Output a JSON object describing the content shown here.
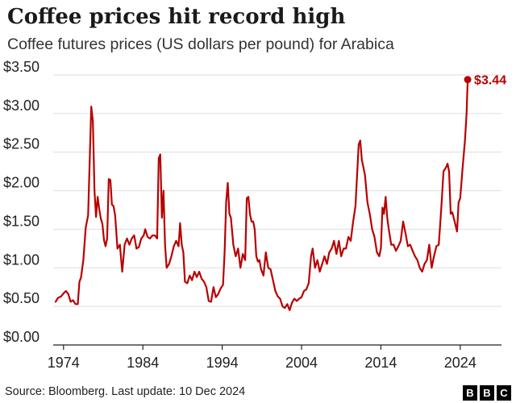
{
  "header": {
    "title": "Coffee prices hit record high",
    "subtitle": "Coffee futures prices (US dollars per pound) for Arabica"
  },
  "footer": {
    "source": "Source: Bloomberg. Last update: 10 Dec 2024",
    "logo_letters": [
      "B",
      "B",
      "C"
    ]
  },
  "colors": {
    "line": "#b80000",
    "grid": "#dddddd",
    "axis": "#222222",
    "text": "#222222"
  },
  "chart_data": {
    "type": "line",
    "title": "Coffee prices hit record high",
    "subtitle": "Coffee futures prices (US dollars per pound) for Arabica",
    "xlabel": "",
    "ylabel": "",
    "xlim": [
      1972.7,
      2025.95
    ],
    "ylim": [
      0,
      3.5
    ],
    "x_ticks": [
      1974,
      1984,
      1994,
      2004,
      2014,
      2024
    ],
    "y_ticks": [
      {
        "value": 0,
        "label": "$0.00"
      },
      {
        "value": 0.5,
        "label": "$0.50"
      },
      {
        "value": 1.0,
        "label": "$1.00"
      },
      {
        "value": 1.5,
        "label": "$1.50"
      },
      {
        "value": 2.0,
        "label": "$2.00"
      },
      {
        "value": 2.5,
        "label": "$2.50"
      },
      {
        "value": 3.0,
        "label": "$3.00"
      },
      {
        "value": 3.5,
        "label": "$3.50"
      }
    ],
    "grid": "horizontal",
    "legend": "none",
    "end_label": "$3.44",
    "series": [
      {
        "color": "#b80000",
        "points": [
          [
            1973.0,
            0.56
          ],
          [
            1973.3,
            0.61
          ],
          [
            1973.7,
            0.63
          ],
          [
            1974.0,
            0.67
          ],
          [
            1974.3,
            0.7
          ],
          [
            1974.6,
            0.66
          ],
          [
            1974.9,
            0.56
          ],
          [
            1975.2,
            0.58
          ],
          [
            1975.5,
            0.53
          ],
          [
            1975.8,
            0.53
          ],
          [
            1976.0,
            0.82
          ],
          [
            1976.2,
            0.87
          ],
          [
            1976.5,
            1.1
          ],
          [
            1976.8,
            1.52
          ],
          [
            1977.1,
            1.68
          ],
          [
            1977.3,
            2.4
          ],
          [
            1977.5,
            3.09
          ],
          [
            1977.7,
            2.9
          ],
          [
            1977.9,
            2.0
          ],
          [
            1978.1,
            1.66
          ],
          [
            1978.3,
            1.92
          ],
          [
            1978.5,
            1.76
          ],
          [
            1978.7,
            1.64
          ],
          [
            1978.9,
            1.57
          ],
          [
            1979.1,
            1.36
          ],
          [
            1979.3,
            1.28
          ],
          [
            1979.5,
            1.38
          ],
          [
            1979.7,
            2.15
          ],
          [
            1979.9,
            2.14
          ],
          [
            1980.1,
            1.82
          ],
          [
            1980.3,
            1.8
          ],
          [
            1980.5,
            1.68
          ],
          [
            1980.8,
            1.25
          ],
          [
            1981.1,
            1.3
          ],
          [
            1981.4,
            0.95
          ],
          [
            1981.7,
            1.3
          ],
          [
            1982.0,
            1.38
          ],
          [
            1982.3,
            1.3
          ],
          [
            1982.6,
            1.38
          ],
          [
            1982.9,
            1.42
          ],
          [
            1983.2,
            1.25
          ],
          [
            1983.5,
            1.27
          ],
          [
            1983.8,
            1.38
          ],
          [
            1984.1,
            1.42
          ],
          [
            1984.3,
            1.5
          ],
          [
            1984.6,
            1.4
          ],
          [
            1984.9,
            1.38
          ],
          [
            1985.2,
            1.42
          ],
          [
            1985.5,
            1.42
          ],
          [
            1985.8,
            1.38
          ],
          [
            1986.0,
            2.42
          ],
          [
            1986.2,
            2.47
          ],
          [
            1986.4,
            1.65
          ],
          [
            1986.6,
            2.0
          ],
          [
            1986.8,
            1.3
          ],
          [
            1987.0,
            1.0
          ],
          [
            1987.3,
            1.05
          ],
          [
            1987.6,
            1.15
          ],
          [
            1987.9,
            1.28
          ],
          [
            1988.2,
            1.35
          ],
          [
            1988.5,
            1.28
          ],
          [
            1988.7,
            1.58
          ],
          [
            1988.9,
            1.3
          ],
          [
            1989.1,
            1.2
          ],
          [
            1989.3,
            0.82
          ],
          [
            1989.6,
            0.8
          ],
          [
            1989.9,
            0.9
          ],
          [
            1990.2,
            0.84
          ],
          [
            1990.5,
            0.95
          ],
          [
            1990.8,
            0.88
          ],
          [
            1991.1,
            0.95
          ],
          [
            1991.4,
            0.86
          ],
          [
            1991.7,
            0.82
          ],
          [
            1992.0,
            0.75
          ],
          [
            1992.3,
            0.57
          ],
          [
            1992.6,
            0.56
          ],
          [
            1992.9,
            0.75
          ],
          [
            1993.2,
            0.62
          ],
          [
            1993.5,
            0.66
          ],
          [
            1993.8,
            0.73
          ],
          [
            1994.1,
            0.78
          ],
          [
            1994.3,
            1.2
          ],
          [
            1994.5,
            1.85
          ],
          [
            1994.7,
            2.1
          ],
          [
            1994.9,
            1.7
          ],
          [
            1995.1,
            1.65
          ],
          [
            1995.4,
            1.3
          ],
          [
            1995.7,
            1.15
          ],
          [
            1996.0,
            1.25
          ],
          [
            1996.3,
            1.0
          ],
          [
            1996.6,
            1.18
          ],
          [
            1996.9,
            1.1
          ],
          [
            1997.1,
            1.9
          ],
          [
            1997.3,
            1.92
          ],
          [
            1997.5,
            1.7
          ],
          [
            1997.7,
            1.6
          ],
          [
            1997.9,
            1.6
          ],
          [
            1998.1,
            1.5
          ],
          [
            1998.3,
            1.15
          ],
          [
            1998.5,
            1.08
          ],
          [
            1998.7,
            1.1
          ],
          [
            1998.9,
            0.98
          ],
          [
            1999.2,
            0.9
          ],
          [
            1999.5,
            1.2
          ],
          [
            1999.8,
            1.0
          ],
          [
            2000.1,
            0.98
          ],
          [
            2000.4,
            0.84
          ],
          [
            2000.7,
            0.7
          ],
          [
            2001.0,
            0.63
          ],
          [
            2001.3,
            0.6
          ],
          [
            2001.6,
            0.5
          ],
          [
            2001.9,
            0.48
          ],
          [
            2002.2,
            0.53
          ],
          [
            2002.5,
            0.45
          ],
          [
            2002.8,
            0.55
          ],
          [
            2003.1,
            0.6
          ],
          [
            2003.4,
            0.57
          ],
          [
            2003.7,
            0.6
          ],
          [
            2004.0,
            0.62
          ],
          [
            2004.3,
            0.7
          ],
          [
            2004.6,
            0.72
          ],
          [
            2004.9,
            0.8
          ],
          [
            2005.2,
            1.15
          ],
          [
            2005.4,
            1.25
          ],
          [
            2005.7,
            1.0
          ],
          [
            2006.0,
            1.1
          ],
          [
            2006.3,
            0.95
          ],
          [
            2006.6,
            1.05
          ],
          [
            2006.9,
            1.15
          ],
          [
            2007.2,
            1.05
          ],
          [
            2007.5,
            1.2
          ],
          [
            2007.8,
            1.25
          ],
          [
            2008.1,
            1.35
          ],
          [
            2008.4,
            1.18
          ],
          [
            2008.7,
            1.35
          ],
          [
            2009.0,
            1.15
          ],
          [
            2009.3,
            1.25
          ],
          [
            2009.6,
            1.25
          ],
          [
            2009.9,
            1.4
          ],
          [
            2010.2,
            1.35
          ],
          [
            2010.5,
            1.6
          ],
          [
            2010.8,
            1.8
          ],
          [
            2011.0,
            2.2
          ],
          [
            2011.2,
            2.6
          ],
          [
            2011.4,
            2.65
          ],
          [
            2011.6,
            2.4
          ],
          [
            2011.8,
            2.3
          ],
          [
            2012.0,
            2.2
          ],
          [
            2012.3,
            1.85
          ],
          [
            2012.6,
            1.7
          ],
          [
            2012.9,
            1.5
          ],
          [
            2013.2,
            1.4
          ],
          [
            2013.5,
            1.2
          ],
          [
            2013.8,
            1.15
          ],
          [
            2014.0,
            1.25
          ],
          [
            2014.2,
            1.78
          ],
          [
            2014.4,
            1.7
          ],
          [
            2014.6,
            1.92
          ],
          [
            2014.8,
            1.65
          ],
          [
            2015.0,
            1.5
          ],
          [
            2015.3,
            1.3
          ],
          [
            2015.6,
            1.3
          ],
          [
            2015.9,
            1.22
          ],
          [
            2016.2,
            1.28
          ],
          [
            2016.5,
            1.35
          ],
          [
            2016.8,
            1.6
          ],
          [
            2017.1,
            1.45
          ],
          [
            2017.4,
            1.28
          ],
          [
            2017.7,
            1.3
          ],
          [
            2018.0,
            1.22
          ],
          [
            2018.3,
            1.15
          ],
          [
            2018.6,
            1.1
          ],
          [
            2018.9,
            1.0
          ],
          [
            2019.2,
            0.95
          ],
          [
            2019.5,
            1.05
          ],
          [
            2019.8,
            1.1
          ],
          [
            2020.1,
            1.3
          ],
          [
            2020.4,
            1.0
          ],
          [
            2020.7,
            1.15
          ],
          [
            2021.0,
            1.28
          ],
          [
            2021.3,
            1.3
          ],
          [
            2021.6,
            1.75
          ],
          [
            2021.9,
            2.25
          ],
          [
            2022.2,
            2.3
          ],
          [
            2022.4,
            2.35
          ],
          [
            2022.6,
            2.25
          ],
          [
            2022.8,
            1.7
          ],
          [
            2023.0,
            1.72
          ],
          [
            2023.3,
            1.6
          ],
          [
            2023.6,
            1.47
          ],
          [
            2023.8,
            1.85
          ],
          [
            2024.0,
            1.9
          ],
          [
            2024.3,
            2.3
          ],
          [
            2024.6,
            2.65
          ],
          [
            2024.8,
            3.0
          ],
          [
            2024.94,
            3.44
          ]
        ]
      }
    ]
  }
}
